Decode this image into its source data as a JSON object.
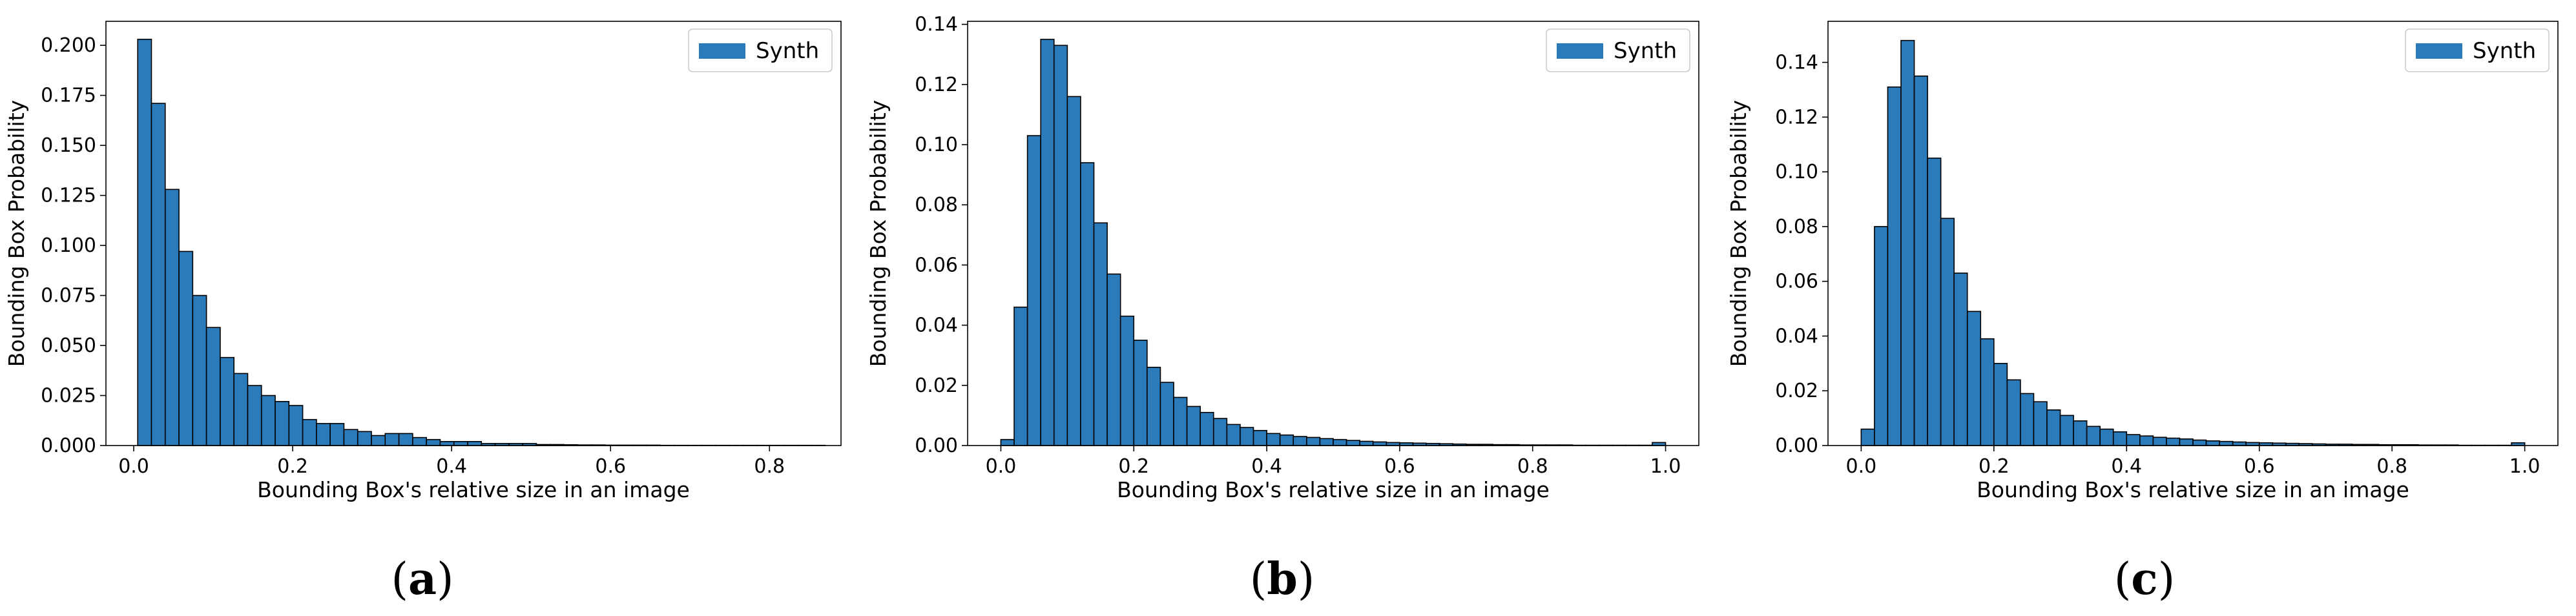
{
  "chart_data": [
    {
      "type": "bar",
      "caption": {
        "open": "(",
        "letter": "a",
        "close": ")"
      },
      "xlabel": "Bounding Box's relative size in an image",
      "ylabel": "Bounding Box Probability",
      "xlim": [
        -0.035,
        0.89
      ],
      "ylim": [
        0,
        0.212
      ],
      "xticks": [
        0.0,
        0.2,
        0.4,
        0.6,
        0.8
      ],
      "xtick_labels": [
        "0.0",
        "0.2",
        "0.4",
        "0.6",
        "0.8"
      ],
      "yticks": [
        0,
        0.025,
        0.05,
        0.075,
        0.1,
        0.125,
        0.15,
        0.175,
        0.2
      ],
      "ytick_labels": [
        "0.000",
        "0.025",
        "0.050",
        "0.075",
        "0.100",
        "0.125",
        "0.150",
        "0.175",
        "0.200"
      ],
      "bin_start": 0.005,
      "bin_width": 0.0173,
      "bar_color": "#2b7bba",
      "series": [
        {
          "name": "Synth",
          "values": [
            0.203,
            0.171,
            0.128,
            0.097,
            0.075,
            0.059,
            0.044,
            0.036,
            0.03,
            0.025,
            0.022,
            0.02,
            0.013,
            0.011,
            0.011,
            0.008,
            0.007,
            0.005,
            0.006,
            0.006,
            0.004,
            0.003,
            0.002,
            0.002,
            0.002,
            0.001,
            0.001,
            0.001,
            0.001,
            0.0005,
            0.0005,
            0.0004,
            0.0003,
            0.0003,
            0.0002,
            0.0002,
            0.0002,
            0.0002,
            0.0001,
            0.0001,
            0.0001,
            0.0001,
            0.0001,
            0.0001,
            0.0001,
            0.0001,
            0.0001,
            0.0001,
            0.0001,
            0.0001
          ]
        }
      ],
      "legend": "top-right"
    },
    {
      "type": "bar",
      "caption": {
        "open": "(",
        "letter": "b",
        "close": ")"
      },
      "xlabel": "Bounding Box's relative size in an image",
      "ylabel": "Bounding Box Probability",
      "xlim": [
        -0.05,
        1.05
      ],
      "ylim": [
        0,
        0.141
      ],
      "xticks": [
        0.0,
        0.2,
        0.4,
        0.6,
        0.8,
        1.0
      ],
      "xtick_labels": [
        "0.0",
        "0.2",
        "0.4",
        "0.6",
        "0.8",
        "1.0"
      ],
      "yticks": [
        0,
        0.02,
        0.04,
        0.06,
        0.08,
        0.1,
        0.12,
        0.14
      ],
      "ytick_labels": [
        "0.00",
        "0.02",
        "0.04",
        "0.06",
        "0.08",
        "0.10",
        "0.12",
        "0.14"
      ],
      "bin_start": 0.0,
      "bin_width": 0.02,
      "bar_color": "#2b7bba",
      "series": [
        {
          "name": "Synth",
          "values": [
            0.002,
            0.046,
            0.103,
            0.135,
            0.133,
            0.116,
            0.094,
            0.074,
            0.057,
            0.043,
            0.035,
            0.026,
            0.021,
            0.016,
            0.013,
            0.011,
            0.009,
            0.007,
            0.006,
            0.005,
            0.004,
            0.0035,
            0.003,
            0.0027,
            0.0023,
            0.002,
            0.0017,
            0.0014,
            0.0012,
            0.001,
            0.0009,
            0.0008,
            0.0007,
            0.0006,
            0.0005,
            0.0004,
            0.0004,
            0.0003,
            0.0003,
            0.0002,
            0.0002,
            0.0002,
            0.0002,
            0.0001,
            0.0001,
            0.0001,
            0.0001,
            0.0001,
            0.0001,
            0.001
          ]
        }
      ],
      "legend": "top-right"
    },
    {
      "type": "bar",
      "caption": {
        "open": "(",
        "letter": "c",
        "close": ")"
      },
      "xlabel": "Bounding Box's relative size in an image",
      "ylabel": "Bounding Box Probability",
      "xlim": [
        -0.05,
        1.05
      ],
      "ylim": [
        0,
        0.155
      ],
      "xticks": [
        0.0,
        0.2,
        0.4,
        0.6,
        0.8,
        1.0
      ],
      "xtick_labels": [
        "0.0",
        "0.2",
        "0.4",
        "0.6",
        "0.8",
        "1.0"
      ],
      "yticks": [
        0,
        0.02,
        0.04,
        0.06,
        0.08,
        0.1,
        0.12,
        0.14
      ],
      "ytick_labels": [
        "0.00",
        "0.02",
        "0.04",
        "0.06",
        "0.08",
        "0.10",
        "0.12",
        "0.14"
      ],
      "bin_start": 0.0,
      "bin_width": 0.02,
      "bar_color": "#2b7bba",
      "series": [
        {
          "name": "Synth",
          "values": [
            0.006,
            0.08,
            0.131,
            0.148,
            0.135,
            0.105,
            0.083,
            0.063,
            0.049,
            0.039,
            0.03,
            0.024,
            0.019,
            0.016,
            0.013,
            0.011,
            0.009,
            0.007,
            0.006,
            0.005,
            0.004,
            0.0035,
            0.003,
            0.0027,
            0.0024,
            0.002,
            0.0017,
            0.0015,
            0.0013,
            0.0011,
            0.001,
            0.0009,
            0.0008,
            0.0007,
            0.0006,
            0.0005,
            0.0005,
            0.0004,
            0.0004,
            0.0003,
            0.0003,
            0.0003,
            0.0002,
            0.0002,
            0.0002,
            0.0001,
            0.0001,
            0.0001,
            0.0001,
            0.001
          ]
        }
      ],
      "legend": "top-right"
    }
  ]
}
